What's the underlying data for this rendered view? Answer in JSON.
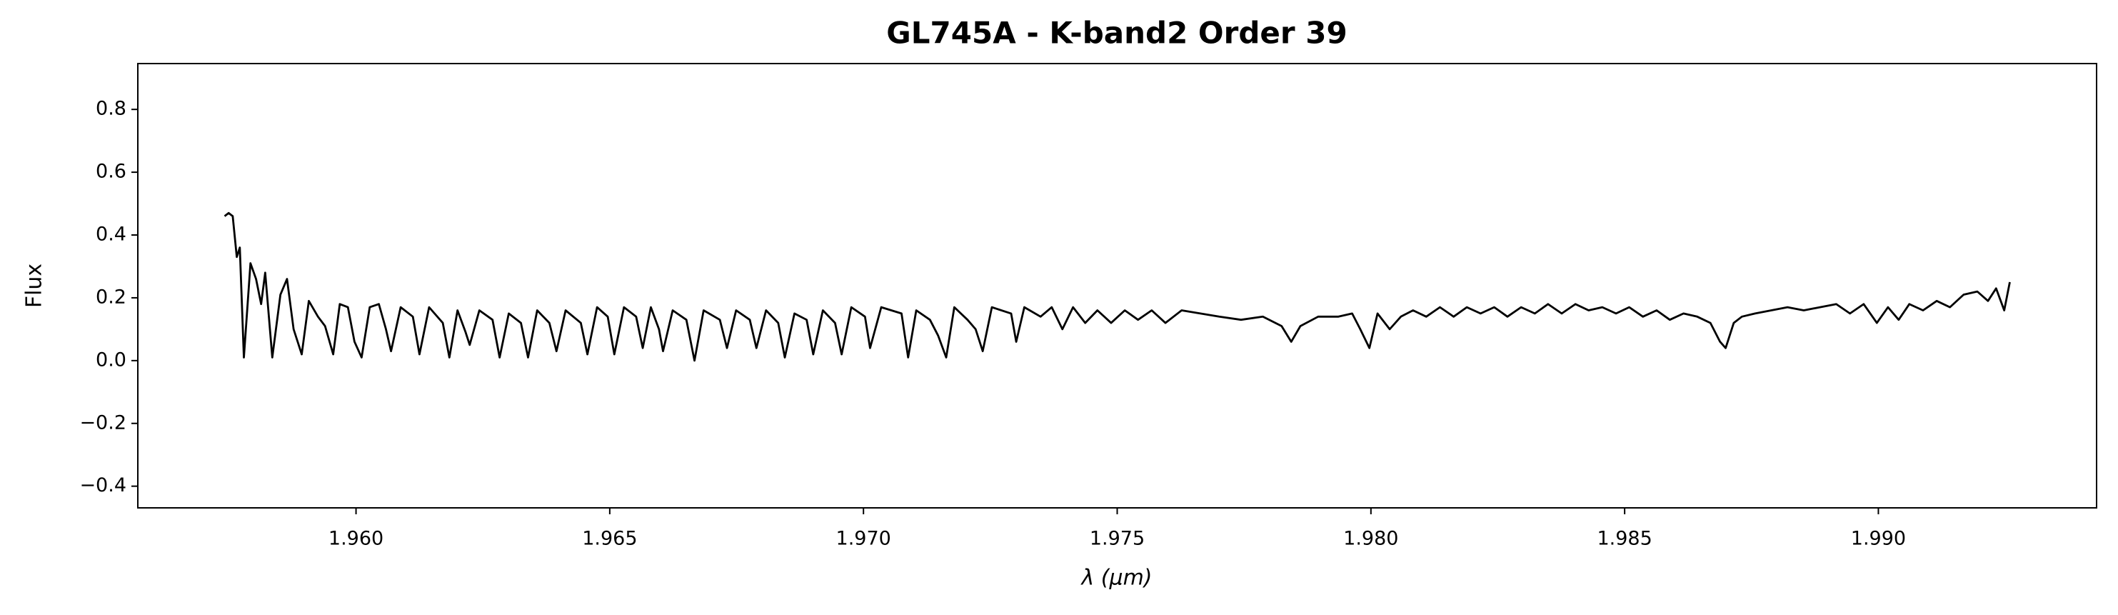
{
  "chart_data": {
    "type": "line",
    "title": "GL745A - K-band2 Order 39",
    "xlabel": "λ (μm)",
    "ylabel": "Flux",
    "xlim": [
      1.9557,
      1.9943
    ],
    "ylim": [
      -0.469,
      0.946
    ],
    "xticks": [
      {
        "value": 1.96,
        "label": "1.960"
      },
      {
        "value": 1.965,
        "label": "1.965"
      },
      {
        "value": 1.97,
        "label": "1.970"
      },
      {
        "value": 1.975,
        "label": "1.975"
      },
      {
        "value": 1.98,
        "label": "1.980"
      },
      {
        "value": 1.985,
        "label": "1.985"
      },
      {
        "value": 1.99,
        "label": "1.990"
      }
    ],
    "yticks": [
      {
        "value": -0.4,
        "label": "−0.4"
      },
      {
        "value": -0.2,
        "label": "−0.2"
      },
      {
        "value": 0.0,
        "label": "0.0"
      },
      0.2,
      0.4,
      0.6,
      0.8
    ],
    "grid": false,
    "series": [
      {
        "color": "#000000",
        "x": [
          1.95741,
          1.95749,
          1.95757,
          1.95765,
          1.95771,
          1.95779,
          1.95792,
          1.95803,
          1.95813,
          1.95821,
          1.95835,
          1.95851,
          1.95864,
          1.95877,
          1.95893,
          1.95907,
          1.95925,
          1.95939,
          1.95955,
          1.95968,
          1.95984,
          1.95997,
          1.96011,
          1.96027,
          1.96045,
          1.96059,
          1.96069,
          1.96088,
          1.96112,
          1.96125,
          1.96144,
          1.96171,
          1.96184,
          1.962,
          1.96216,
          1.96224,
          1.96243,
          1.96269,
          1.96283,
          1.96301,
          1.96325,
          1.96339,
          1.96357,
          1.96381,
          1.96395,
          1.96413,
          1.96443,
          1.96456,
          1.96475,
          1.96496,
          1.96509,
          1.96528,
          1.96552,
          1.96565,
          1.96581,
          1.96597,
          1.96605,
          1.96624,
          1.96651,
          1.96667,
          1.96685,
          1.96717,
          1.96731,
          1.96749,
          1.96776,
          1.96789,
          1.96808,
          1.96832,
          1.96845,
          1.96864,
          1.96888,
          1.96901,
          1.9692,
          1.96944,
          1.96957,
          1.96976,
          1.97003,
          1.97013,
          1.97035,
          1.97075,
          1.97088,
          1.97104,
          1.97131,
          1.97147,
          1.97163,
          1.97179,
          1.97205,
          1.97221,
          1.97235,
          1.97253,
          1.97291,
          1.97301,
          1.97317,
          1.97349,
          1.97371,
          1.97392,
          1.97413,
          1.97437,
          1.97461,
          1.97488,
          1.97515,
          1.97541,
          1.97568,
          1.97595,
          1.97627,
          1.97664,
          1.97701,
          1.97744,
          1.97787,
          1.97824,
          1.97843,
          1.97861,
          1.97896,
          1.97936,
          1.97963,
          1.97979,
          1.97997,
          1.98013,
          1.98037,
          1.98059,
          1.98083,
          1.98109,
          1.98136,
          1.98163,
          1.98189,
          1.98216,
          1.98243,
          1.98269,
          1.98296,
          1.98323,
          1.98349,
          1.98376,
          1.98403,
          1.98429,
          1.98456,
          1.98483,
          1.98509,
          1.98536,
          1.98563,
          1.98589,
          1.98616,
          1.98643,
          1.98669,
          1.98688,
          1.98699,
          1.98715,
          1.98731,
          1.98757,
          1.98789,
          1.98821,
          1.98853,
          1.98885,
          1.98917,
          1.98944,
          1.98971,
          1.98997,
          1.99019,
          1.9904,
          1.99061,
          1.99088,
          1.99115,
          1.99141,
          1.99168,
          1.99195,
          1.99216,
          1.99232,
          1.99248,
          1.99259
        ],
        "values": [
          0.46,
          0.47,
          0.46,
          0.33,
          0.36,
          0.01,
          0.31,
          0.26,
          0.18,
          0.28,
          0.01,
          0.21,
          0.26,
          0.1,
          0.02,
          0.19,
          0.14,
          0.11,
          0.02,
          0.18,
          0.17,
          0.06,
          0.01,
          0.17,
          0.18,
          0.1,
          0.03,
          0.17,
          0.14,
          0.02,
          0.17,
          0.12,
          0.01,
          0.16,
          0.09,
          0.05,
          0.16,
          0.13,
          0.01,
          0.15,
          0.12,
          0.01,
          0.16,
          0.12,
          0.03,
          0.16,
          0.12,
          0.02,
          0.17,
          0.14,
          0.02,
          0.17,
          0.14,
          0.04,
          0.17,
          0.1,
          0.03,
          0.16,
          0.13,
          0.0,
          0.16,
          0.13,
          0.04,
          0.16,
          0.13,
          0.04,
          0.16,
          0.12,
          0.01,
          0.15,
          0.13,
          0.02,
          0.16,
          0.12,
          0.02,
          0.17,
          0.14,
          0.04,
          0.17,
          0.15,
          0.01,
          0.16,
          0.13,
          0.08,
          0.01,
          0.17,
          0.13,
          0.1,
          0.03,
          0.17,
          0.15,
          0.06,
          0.17,
          0.14,
          0.17,
          0.1,
          0.17,
          0.12,
          0.16,
          0.12,
          0.16,
          0.13,
          0.16,
          0.12,
          0.16,
          0.15,
          0.14,
          0.13,
          0.14,
          0.11,
          0.06,
          0.11,
          0.14,
          0.14,
          0.15,
          0.1,
          0.04,
          0.15,
          0.1,
          0.14,
          0.16,
          0.14,
          0.17,
          0.14,
          0.17,
          0.15,
          0.17,
          0.14,
          0.17,
          0.15,
          0.18,
          0.15,
          0.18,
          0.16,
          0.17,
          0.15,
          0.17,
          0.14,
          0.16,
          0.13,
          0.15,
          0.14,
          0.12,
          0.06,
          0.04,
          0.12,
          0.14,
          0.15,
          0.16,
          0.17,
          0.16,
          0.17,
          0.18,
          0.15,
          0.18,
          0.12,
          0.17,
          0.13,
          0.18,
          0.16,
          0.19,
          0.17,
          0.21,
          0.22,
          0.19,
          0.23,
          0.16,
          0.25
        ]
      }
    ]
  }
}
